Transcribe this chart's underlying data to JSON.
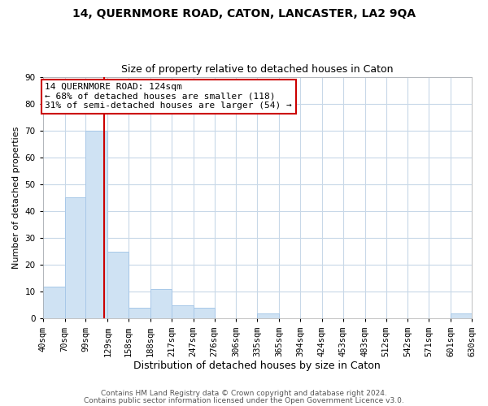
{
  "title": "14, QUERNMORE ROAD, CATON, LANCASTER, LA2 9QA",
  "subtitle": "Size of property relative to detached houses in Caton",
  "xlabel": "Distribution of detached houses by size in Caton",
  "ylabel": "Number of detached properties",
  "bin_edges": [
    40,
    70,
    99,
    129,
    158,
    188,
    217,
    247,
    276,
    306,
    335,
    365,
    394,
    424,
    453,
    483,
    512,
    542,
    571,
    601,
    630
  ],
  "bin_labels": [
    "40sqm",
    "70sqm",
    "99sqm",
    "129sqm",
    "158sqm",
    "188sqm",
    "217sqm",
    "247sqm",
    "276sqm",
    "306sqm",
    "335sqm",
    "365sqm",
    "394sqm",
    "424sqm",
    "453sqm",
    "483sqm",
    "512sqm",
    "542sqm",
    "571sqm",
    "601sqm",
    "630sqm"
  ],
  "counts": [
    12,
    45,
    70,
    25,
    4,
    11,
    5,
    4,
    0,
    0,
    2,
    0,
    0,
    0,
    0,
    0,
    0,
    0,
    0,
    2
  ],
  "bar_color": "#cfe2f3",
  "bar_edge_color": "#a8c8e8",
  "vline_x": 124,
  "vline_color": "#cc0000",
  "ylim": [
    0,
    90
  ],
  "yticks": [
    0,
    10,
    20,
    30,
    40,
    50,
    60,
    70,
    80,
    90
  ],
  "annotation_line1": "14 QUERNMORE ROAD: 124sqm",
  "annotation_line2": "← 68% of detached houses are smaller (118)",
  "annotation_line3": "31% of semi-detached houses are larger (54) →",
  "annotation_box_color": "#ffffff",
  "annotation_box_edge_color": "#cc0000",
  "footer1": "Contains HM Land Registry data © Crown copyright and database right 2024.",
  "footer2": "Contains public sector information licensed under the Open Government Licence v3.0.",
  "background_color": "#ffffff",
  "grid_color": "#c8d8e8",
  "title_fontsize": 10,
  "subtitle_fontsize": 9,
  "xlabel_fontsize": 9,
  "ylabel_fontsize": 8,
  "tick_fontsize": 7.5,
  "annotation_fontsize": 8,
  "footer_fontsize": 6.5
}
